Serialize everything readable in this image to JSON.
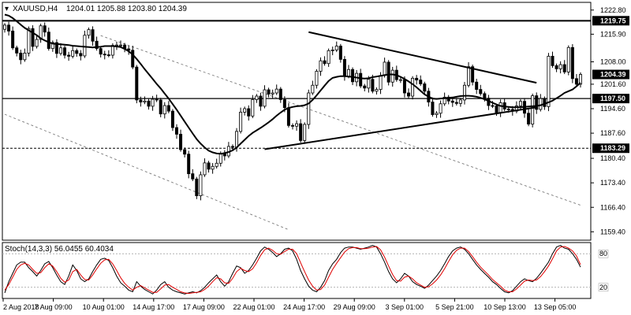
{
  "header": {
    "symbol": "XAUUSD,H4",
    "ohlc": "1204.01 1205.88 1203.80 1204.39",
    "menu_glyph": "▾"
  },
  "stoch": {
    "label": "Stoch(14,3,3) 56.0455 60.4034",
    "ticks": [
      "80",
      "20"
    ],
    "colors": {
      "main": "#000000",
      "signal": "#e00000"
    }
  },
  "chart_data": [
    {
      "type": "candlestick",
      "symbol": "XAUUSD",
      "timeframe": "H4",
      "ylim": [
        1157,
        1225
      ],
      "y_ticks": [
        "1222.80",
        "1215.90",
        "1208.00",
        "1201.60",
        "1194.60",
        "1187.60",
        "1180.40",
        "1173.40",
        "1166.40",
        "1159.40"
      ],
      "x_ticks": [
        "2 Aug 2018",
        "7 Aug 09:00",
        "10 Aug 01:00",
        "14 Aug 17:00",
        "17 Aug 09:00",
        "22 Aug 01:00",
        "24 Aug 17:00",
        "29 Aug 09:00",
        "3 Sep 01:00",
        "5 Sep 21:00",
        "10 Sep 13:00",
        "13 Sep 05:00"
      ],
      "candle_count": 145,
      "close": [
        1218.5,
        1216.8,
        1212,
        1210.5,
        1208.6,
        1210.5,
        1217.5,
        1212.4,
        1214.4,
        1218.3,
        1216.5,
        1211.8,
        1213.5,
        1210.4,
        1212,
        1209.9,
        1209.6,
        1211.2,
        1210.4,
        1209.7,
        1215.6,
        1217.2,
        1213.9,
        1211.8,
        1210.2,
        1210,
        1209.9,
        1212.7,
        1212.8,
        1212.8,
        1211.7,
        1211.3,
        1206.5,
        1197.1,
        1196.5,
        1196.8,
        1195.3,
        1197.3,
        1197.1,
        1193.1,
        1195.5,
        1193.9,
        1189.2,
        1187.3,
        1182.9,
        1181.6,
        1176,
        1174.5,
        1169.7,
        1175.7,
        1179.1,
        1177.3,
        1178.1,
        1179,
        1181.8,
        1181.1,
        1183.8,
        1183.6,
        1188.1,
        1193.6,
        1194.6,
        1192.5,
        1197.2,
        1198.2,
        1195.3,
        1200,
        1198.8,
        1199.1,
        1200.2,
        1197.2,
        1194.9,
        1189.8,
        1189.6,
        1190.3,
        1185.5,
        1190.1,
        1199.1,
        1201.3,
        1205.3,
        1208.3,
        1207.5,
        1211.2,
        1211.4,
        1212.5,
        1208.7,
        1203.9,
        1205.8,
        1202.3,
        1204.7,
        1201.1,
        1200.5,
        1203,
        1199.6,
        1200.1,
        1204.1,
        1207.9,
        1202.2,
        1205.6,
        1202.9,
        1202.9,
        1199.1,
        1198.2,
        1203.3,
        1202.8,
        1201.7,
        1199.6,
        1196.5,
        1192.9,
        1193.3,
        1196,
        1197.9,
        1196.8,
        1196.4,
        1196.1,
        1197.1,
        1201.3,
        1206.6,
        1202.2,
        1200.1,
        1198.9,
        1197.6,
        1195.5,
        1195.4,
        1193.5,
        1196.3,
        1194.5,
        1194.4,
        1193.9,
        1195.4,
        1196.7,
        1193.3,
        1190.2,
        1198.3,
        1194.4,
        1197.5,
        1195.2,
        1209.6,
        1206.9,
        1206,
        1207.2,
        1205.1,
        1212.1,
        1203.2,
        1201.6,
        1204.39
      ],
      "moving_average": [
        1221.5,
        1221.2,
        1220.5,
        1219.6,
        1218.6,
        1217.7,
        1217,
        1216.3,
        1215.6,
        1214.7,
        1214.1,
        1213.6,
        1213.2,
        1213.1,
        1213,
        1212.9,
        1212.8,
        1212.6,
        1212.5,
        1212.4,
        1212.3,
        1212.2,
        1212.1,
        1212.2,
        1212.3,
        1212.5,
        1212.5,
        1212.5,
        1212.4,
        1212.2,
        1211.7,
        1211,
        1210.1,
        1208.8,
        1207.4,
        1205.9,
        1204.5,
        1203.1,
        1201.7,
        1200.4,
        1198.9,
        1197.5,
        1195.9,
        1194.3,
        1192.6,
        1190.9,
        1189.2,
        1187.5,
        1185.9,
        1184.6,
        1183.5,
        1182.6,
        1182.1,
        1181.8,
        1181.7,
        1181.9,
        1182.2,
        1182.7,
        1183.5,
        1184.6,
        1185.7,
        1186.8,
        1187.7,
        1188.4,
        1189.1,
        1189.9,
        1190.7,
        1191.6,
        1192.6,
        1193.5,
        1194.3,
        1194.8,
        1195.1,
        1195.3,
        1195.4,
        1195.6,
        1196.1,
        1197.1,
        1198.4,
        1199.8,
        1201.2,
        1202.5,
        1203.4,
        1203.7,
        1203.9,
        1203.9,
        1203.8,
        1203.7,
        1203.5,
        1203.3,
        1203.2,
        1203.3,
        1203.6,
        1203.8,
        1204,
        1204.2,
        1204.4,
        1204.4,
        1204.2,
        1203.7,
        1203.1,
        1202.4,
        1201.6,
        1200.7,
        1199.7,
        1198.7,
        1198,
        1197.5,
        1197.4,
        1197.5,
        1197.6,
        1197.7,
        1197.8,
        1198,
        1198.2,
        1198.3,
        1198.3,
        1198.2,
        1198,
        1197.7,
        1197.3,
        1196.8,
        1196.3,
        1195.8,
        1195.4,
        1195.2,
        1195.1,
        1195,
        1195,
        1195,
        1195.1,
        1195.2,
        1195.3,
        1195.4,
        1195.6,
        1196,
        1196.4,
        1196.9,
        1197.6,
        1198.3,
        1199.1,
        1199.6,
        1200.1,
        1201,
        1202
      ],
      "horizontal_levels": [
        {
          "value": 1219.75,
          "label": "1219.75",
          "style": "solid"
        },
        {
          "value": 1204.39,
          "label": "1204.39",
          "style": "current-price"
        },
        {
          "value": 1197.5,
          "label": "1197.50",
          "style": "solid"
        },
        {
          "value": 1183.29,
          "label": "1183.29",
          "style": "dashed"
        }
      ],
      "trendlines": [
        {
          "name": "triangle upper",
          "from": [
            76,
            1216.5
          ],
          "to": [
            133,
            1202.0
          ]
        },
        {
          "name": "triangle lower",
          "from": [
            65,
            1183.0
          ],
          "to": [
            133,
            1195.0
          ]
        },
        {
          "name": "channel upper",
          "from": [
            24,
            1215.5
          ],
          "to": [
            144,
            1167.0
          ],
          "style": "dashed"
        },
        {
          "name": "channel lower",
          "from": [
            0,
            1193.0
          ],
          "to": [
            71,
            1160.0
          ],
          "style": "dashed"
        }
      ]
    },
    {
      "type": "line",
      "title": "Stoch(14,3,3) 56.0455 60.4034",
      "ylim": [
        0,
        100
      ],
      "y_ticks": [
        "80",
        "20"
      ],
      "series": [
        {
          "values": [
            10,
            30,
            45,
            60,
            65,
            65,
            55,
            48,
            40,
            50,
            62,
            66,
            55,
            42,
            30,
            25,
            40,
            60,
            50,
            35,
            30,
            35,
            48,
            60,
            70,
            72,
            68,
            55,
            40,
            28,
            22,
            15,
            12,
            30,
            22,
            16,
            12,
            8,
            15,
            25,
            30,
            20,
            15,
            12,
            10,
            8,
            10,
            12,
            10,
            14,
            20,
            28,
            35,
            42,
            30,
            22,
            30,
            45,
            58,
            55,
            45,
            50,
            60,
            72,
            85,
            92,
            88,
            82,
            75,
            80,
            88,
            90,
            85,
            70,
            50,
            35,
            22,
            15,
            12,
            20,
            32,
            50,
            62,
            70,
            82,
            90,
            92,
            92,
            90,
            88,
            90,
            92,
            95,
            92,
            80,
            65,
            48,
            35,
            28,
            35,
            45,
            40,
            30,
            25,
            22,
            18,
            24,
            32,
            40,
            50,
            62,
            75,
            85,
            90,
            92,
            88,
            80,
            70,
            60,
            52,
            45,
            38,
            30,
            25,
            18,
            12,
            10,
            14,
            22,
            30,
            35,
            32,
            30,
            36,
            45,
            55,
            65,
            80,
            92,
            95,
            90,
            88,
            80,
            70,
            56
          ]
        },
        {
          "values": [
            15,
            25,
            38,
            52,
            60,
            63,
            60,
            52,
            45,
            46,
            55,
            62,
            58,
            48,
            36,
            29,
            33,
            48,
            52,
            42,
            34,
            33,
            42,
            53,
            63,
            69,
            70,
            62,
            50,
            37,
            27,
            20,
            15,
            20,
            23,
            19,
            15,
            11,
            11,
            17,
            24,
            25,
            20,
            16,
            12,
            10,
            9,
            10,
            11,
            12,
            16,
            22,
            30,
            37,
            35,
            28,
            27,
            36,
            48,
            54,
            50,
            48,
            53,
            64,
            77,
            87,
            90,
            86,
            80,
            79,
            84,
            88,
            88,
            80,
            64,
            48,
            33,
            22,
            15,
            16,
            24,
            38,
            52,
            63,
            73,
            83,
            89,
            91,
            91,
            89,
            89,
            90,
            92,
            93,
            87,
            74,
            58,
            43,
            32,
            31,
            38,
            40,
            35,
            28,
            24,
            20,
            21,
            26,
            33,
            42,
            53,
            66,
            78,
            86,
            90,
            90,
            84,
            75,
            65,
            56,
            49,
            42,
            34,
            28,
            22,
            15,
            12,
            12,
            17,
            24,
            31,
            33,
            32,
            33,
            39,
            48,
            58,
            71,
            85,
            92,
            93,
            90,
            85,
            76,
            60.4
          ]
        }
      ]
    }
  ]
}
